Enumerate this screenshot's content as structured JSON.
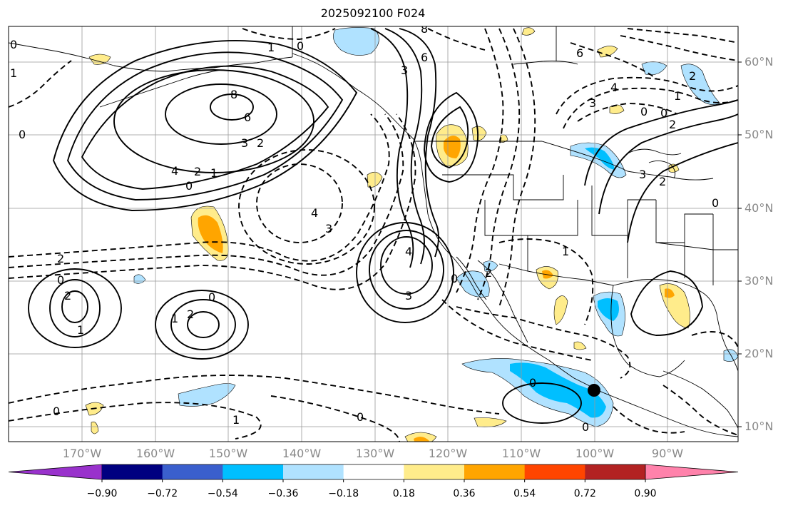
{
  "title": "2025092100 F024",
  "lat_labels": [
    "60°N",
    "50°N",
    "40°N",
    "30°N",
    "20°N",
    "10°N"
  ],
  "lon_labels": [
    "170°W",
    "160°W",
    "150°W",
    "140°W",
    "130°W",
    "120°W",
    "110°W",
    "100°W",
    "90°W"
  ],
  "colorbar": {
    "colors": [
      "#9932CC",
      "#000080",
      "#3A5FCD",
      "#00BFFF",
      "#B0E2FF",
      "#FFFFFF",
      "#FFEC8B",
      "#FFA500",
      "#FF4500",
      "#B22222",
      "#FF82AB"
    ],
    "tick_labels": [
      "−0.90",
      "−0.72",
      "−0.54",
      "−0.36",
      "−0.18",
      "0.18",
      "0.36",
      "0.54",
      "0.72",
      "0.90"
    ]
  },
  "contour_labels": {
    "l_0a": "0",
    "l_1a": "1",
    "l_0b": "0",
    "l_8a": "8",
    "l_6a": "6",
    "l_3a": "3",
    "l_6b": "6",
    "l_1b": "1",
    "l_8b": "8",
    "l_6c": "6",
    "l_3b": "3",
    "l_2a": "2",
    "l_4a": "4",
    "l_2b": "2",
    "l_1c": "1",
    "l_0c": "0",
    "l_4b": "4",
    "l_3c": "3",
    "l_2c": "2",
    "l_4c": "4",
    "l_3d": "3",
    "l_0d": "0",
    "l_2d": "2",
    "l_0e": "0",
    "l_1d": "1",
    "l_2e": "2",
    "l_0f": "0",
    "l_0g": "0",
    "l_1e": "1",
    "l_0h": "0",
    "l_1f": "1",
    "l_0i": "0",
    "l_0j": "0",
    "l_1g": "1",
    "l_2f": "2",
    "l_4d": "4",
    "l_3e": "3",
    "l_0k": "0",
    "l_0l": "0",
    "l_2g": "2",
    "l_3f": "3",
    "l_2h": "2",
    "l_1h": "1",
    "l_2i": "2",
    "l_0m": "0",
    "l_0n": "0"
  },
  "marker": "storm-center"
}
